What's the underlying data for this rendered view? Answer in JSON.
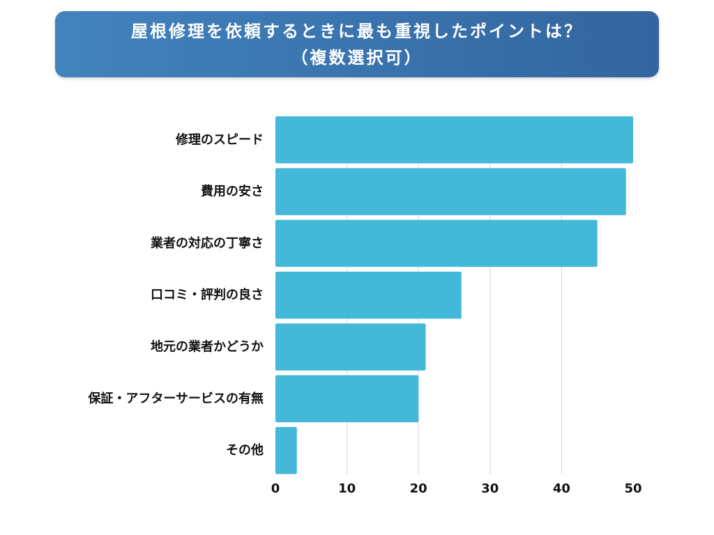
{
  "chart_data": {
    "type": "bar",
    "orientation": "horizontal",
    "title": "屋根修理を依頼するときに最も重視したポイントは？",
    "subtitle": "（複数選択可）",
    "categories": [
      "修理のスピード",
      "費用の安さ",
      "業者の対応の丁寧さ",
      "口コミ・評判の良さ",
      "地元の業者かどうか",
      "保証・アフターサービスの有無",
      "その他"
    ],
    "values": [
      50,
      49,
      45,
      26,
      21,
      20,
      3
    ],
    "xlim": [
      0,
      50
    ],
    "xticks": [
      0,
      10,
      20,
      30,
      40,
      50
    ],
    "grid": true
  },
  "colors": {
    "banner_start": "#4283be",
    "banner_end": "#33659e",
    "title_text": "#ffffff",
    "bar": "#43b8d8",
    "grid": "#d9d9d9",
    "label": "#111111"
  }
}
